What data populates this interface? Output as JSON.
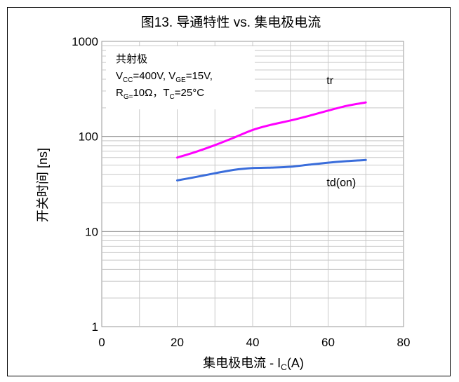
{
  "chart_data": {
    "type": "line",
    "title": "图13. 导通特性 vs. 集电极电流",
    "xlabel": {
      "main": "集电极电流 - I",
      "sub": "C",
      "suffix": "(A)"
    },
    "ylabel": "开关时间 [ns]",
    "xlim": [
      0,
      80
    ],
    "ylim": [
      1,
      1000
    ],
    "yscale": "log",
    "grid": true,
    "x_ticks": [
      "0",
      "20",
      "40",
      "60",
      "80"
    ],
    "y_ticks": [
      "1",
      "10",
      "100",
      "1000"
    ],
    "conditions": {
      "line1": "共射极",
      "line2": [
        {
          "t": "V",
          "sub": false
        },
        {
          "t": "CC",
          "sub": true
        },
        {
          "t": "=400V, V",
          "sub": false
        },
        {
          "t": "GE",
          "sub": true
        },
        {
          "t": "=15V,",
          "sub": false
        }
      ],
      "line3": [
        {
          "t": "R",
          "sub": false
        },
        {
          "t": "G=",
          "sub": true
        },
        {
          "t": "10Ω，T",
          "sub": false
        },
        {
          "t": "C",
          "sub": true
        },
        {
          "t": "=25°C",
          "sub": false
        }
      ]
    },
    "series": [
      {
        "name": "tr",
        "color": "#ff00ff",
        "x": [
          20,
          25,
          30,
          35,
          40,
          45,
          50,
          55,
          60,
          65,
          70
        ],
        "y": [
          60,
          69,
          81,
          97,
          117,
          133,
          147,
          165,
          187,
          210,
          228
        ]
      },
      {
        "name": "td(on)",
        "color": "#3a6ddb",
        "x": [
          20,
          25,
          30,
          35,
          40,
          45,
          50,
          55,
          60,
          65,
          70
        ],
        "y": [
          34.5,
          37.5,
          41,
          44.5,
          46.5,
          47,
          48,
          50.5,
          53,
          55,
          56.5
        ]
      }
    ]
  }
}
